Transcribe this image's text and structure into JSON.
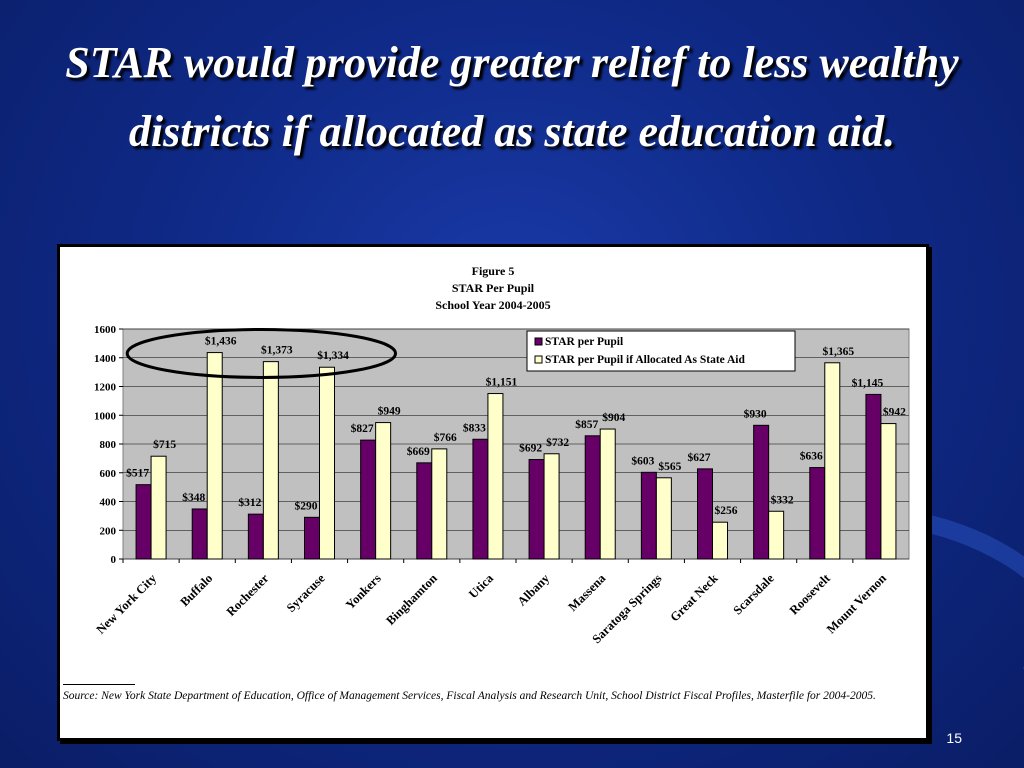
{
  "slide": {
    "title": "STAR would provide greater relief to less wealthy districts if allocated as state education aid.",
    "page_number": "15",
    "source": "Source: New York State Department of Education, Office of Management Services, Fiscal Analysis and Research Unit, School District Fiscal Profiles, Masterfile for 2004-2005."
  },
  "colors": {
    "series1": "#660066",
    "series2": "#ffffcc",
    "plot_background": "#c0c0c0",
    "highlight_ellipse": "#000000"
  },
  "chart_data": {
    "type": "bar",
    "title_lines": [
      "Figure 5",
      "STAR Per Pupil",
      "School Year 2004-2005"
    ],
    "categories": [
      "New York City",
      "Buffalo",
      "Rochester",
      "Syracuse",
      "Yonkers",
      "Binghamton",
      "Utica",
      "Albany",
      "Massena",
      "Saratoga Springs",
      "Great Neck",
      "Scarsdale",
      "Roosevelt",
      "Mount Vernon"
    ],
    "series": [
      {
        "name": "STAR per Pupil",
        "values": [
          517,
          348,
          312,
          290,
          827,
          669,
          833,
          692,
          857,
          603,
          627,
          930,
          636,
          1145
        ],
        "labels": [
          "$517",
          "$348",
          "$312",
          "$290",
          "$827",
          "$669",
          "$833",
          "$692",
          "$857",
          "$603",
          "$627",
          "$930",
          "$636",
          "$1,145"
        ]
      },
      {
        "name": "STAR per Pupil if Allocated As State Aid",
        "values": [
          715,
          1436,
          1373,
          1334,
          949,
          766,
          1151,
          732,
          904,
          565,
          256,
          332,
          1365,
          942
        ],
        "labels": [
          "$715",
          "$1,436",
          "$1,373",
          "$1,334",
          "$949",
          "$766",
          "$1,151",
          "$732",
          "$904",
          "$565",
          "$256",
          "$332",
          "$1,365",
          "$942"
        ]
      }
    ],
    "yticks": [
      "0",
      "200",
      "400",
      "600",
      "800",
      "1000",
      "1200",
      "1400",
      "1600"
    ],
    "ylim": [
      0,
      1600
    ],
    "xlabel": "",
    "ylabel": "",
    "legend_position": "top-right",
    "grid": true,
    "annotation": "ellipse around Buffalo, Rochester and Syracuse state-aid values"
  }
}
